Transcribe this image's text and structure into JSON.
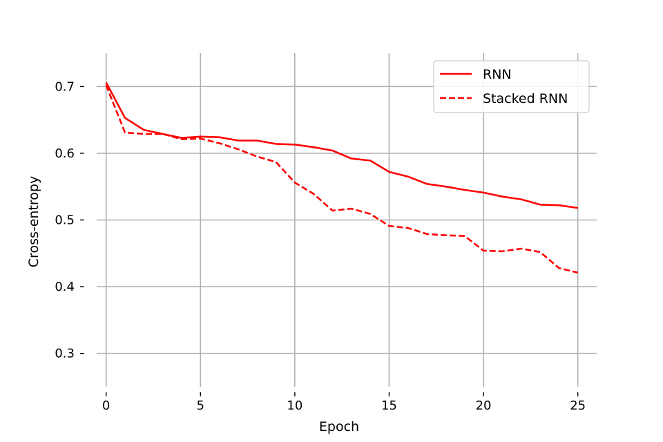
{
  "chart_data": {
    "type": "line",
    "title": "",
    "xlabel": "Epoch",
    "ylabel": "Cross-entropy",
    "xlim": [
      -0.5,
      26
    ],
    "ylim": [
      0.25,
      0.75
    ],
    "xticks": [
      0,
      5,
      10,
      15,
      20,
      25
    ],
    "yticks": [
      0.3,
      0.4,
      0.5,
      0.6,
      0.7
    ],
    "xtick_labels": [
      "0",
      "5",
      "10",
      "15",
      "20",
      "25"
    ],
    "ytick_labels": [
      "0.3",
      "0.4",
      "0.5",
      "0.6",
      "0.7"
    ],
    "grid": true,
    "legend_position": "top-right",
    "x": [
      0,
      1,
      2,
      3,
      4,
      5,
      6,
      7,
      8,
      9,
      10,
      11,
      12,
      13,
      14,
      15,
      16,
      17,
      18,
      19,
      20,
      21,
      22,
      23,
      24,
      25
    ],
    "series": [
      {
        "name": "RNN",
        "color": "#ff0000",
        "style": "solid",
        "values": [
          0.706,
          0.653,
          0.635,
          0.629,
          0.623,
          0.625,
          0.624,
          0.619,
          0.619,
          0.614,
          0.613,
          0.609,
          0.604,
          0.592,
          0.589,
          0.572,
          0.565,
          0.554,
          0.55,
          0.545,
          0.541,
          0.535,
          0.531,
          0.523,
          0.522,
          0.518
        ]
      },
      {
        "name": "Stacked RNN",
        "color": "#ff0000",
        "style": "dashed",
        "values": [
          0.702,
          0.631,
          0.629,
          0.629,
          0.621,
          0.622,
          0.615,
          0.606,
          0.595,
          0.587,
          0.556,
          0.539,
          0.514,
          0.517,
          0.509,
          0.491,
          0.488,
          0.479,
          0.477,
          0.476,
          0.454,
          0.453,
          0.457,
          0.452,
          0.428,
          0.421
        ]
      }
    ]
  }
}
